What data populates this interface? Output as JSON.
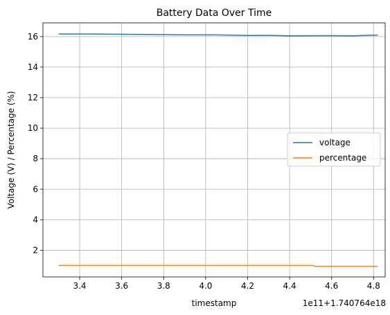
{
  "chart_data": {
    "type": "line",
    "title": "Battery Data Over Time",
    "xlabel": "timestamp",
    "ylabel": "Voltage (V) / Percentage (%)",
    "x_offset_text": "1e11+1.740764e18",
    "xlim": [
      3.225,
      4.855
    ],
    "ylim": [
      0.25,
      16.9
    ],
    "x_ticks": [
      3.4,
      3.6,
      3.8,
      4.0,
      4.2,
      4.4,
      4.6,
      4.8
    ],
    "x_tick_labels": [
      "3.4",
      "3.6",
      "3.8",
      "4.0",
      "4.2",
      "4.4",
      "4.6",
      "4.8"
    ],
    "y_ticks": [
      2,
      4,
      6,
      8,
      10,
      12,
      14,
      16
    ],
    "y_tick_labels": [
      "2",
      "4",
      "6",
      "8",
      "10",
      "12",
      "14",
      "16"
    ],
    "grid": true,
    "legend_position": "center-right",
    "series": [
      {
        "name": "voltage",
        "color": "#1f77b4",
        "x": [
          3.3,
          3.45,
          3.6,
          3.8,
          3.9,
          4.05,
          4.2,
          4.3,
          4.4,
          4.6,
          4.7,
          4.82
        ],
        "y": [
          16.17,
          16.17,
          16.15,
          16.13,
          16.11,
          16.11,
          16.07,
          16.08,
          16.05,
          16.06,
          16.05,
          16.1
        ]
      },
      {
        "name": "percentage",
        "color": "#ff7f0e",
        "x": [
          3.3,
          4.51,
          4.52,
          4.82
        ],
        "y": [
          1.0,
          1.0,
          0.95,
          0.95
        ]
      }
    ]
  }
}
